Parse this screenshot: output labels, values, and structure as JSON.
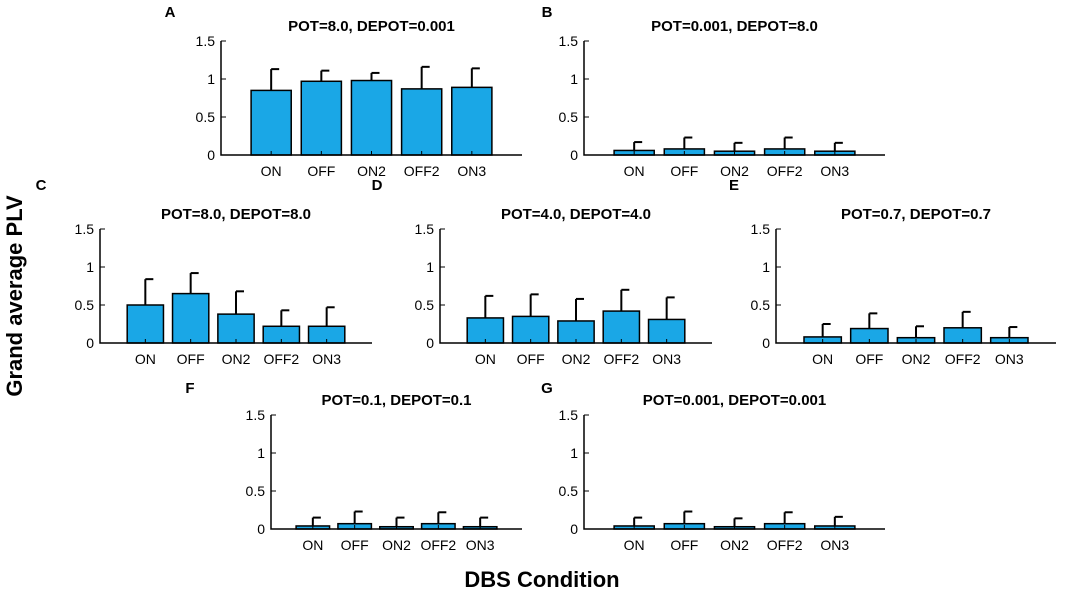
{
  "figure": {
    "ylabel": "Grand average PLV",
    "xlabel": "DBS Condition",
    "colors": {
      "bar": "#1aa7e6",
      "edge": "#000000"
    }
  },
  "chart_data": [
    {
      "type": "bar",
      "panel": "A",
      "title": "POT=8.0, DEPOT=0.001",
      "categories": [
        "ON",
        "OFF",
        "ON2",
        "OFF2",
        "ON3"
      ],
      "values": [
        0.85,
        0.97,
        0.98,
        0.87,
        0.89
      ],
      "errors": [
        0.28,
        0.14,
        0.1,
        0.29,
        0.25
      ],
      "ylim": [
        0,
        1.5
      ],
      "yticks": [
        "0",
        "0.5",
        "1",
        "1.5"
      ]
    },
    {
      "type": "bar",
      "panel": "B",
      "title": "POT=0.001, DEPOT=8.0",
      "categories": [
        "ON",
        "OFF",
        "ON2",
        "OFF2",
        "ON3"
      ],
      "values": [
        0.06,
        0.08,
        0.05,
        0.08,
        0.05
      ],
      "errors": [
        0.11,
        0.15,
        0.11,
        0.15,
        0.11
      ],
      "ylim": [
        0,
        1.5
      ],
      "yticks": [
        "0",
        "0.5",
        "1",
        "1.5"
      ]
    },
    {
      "type": "bar",
      "panel": "C",
      "title": "POT=8.0, DEPOT=8.0",
      "categories": [
        "ON",
        "OFF",
        "ON2",
        "OFF2",
        "ON3"
      ],
      "values": [
        0.5,
        0.65,
        0.38,
        0.22,
        0.22
      ],
      "errors": [
        0.34,
        0.27,
        0.3,
        0.21,
        0.25
      ],
      "ylim": [
        0,
        1.5
      ],
      "yticks": [
        "0",
        "0.5",
        "1",
        "1.5"
      ]
    },
    {
      "type": "bar",
      "panel": "D",
      "title": "POT=4.0, DEPOT=4.0",
      "categories": [
        "ON",
        "OFF",
        "ON2",
        "OFF2",
        "ON3"
      ],
      "values": [
        0.33,
        0.35,
        0.29,
        0.42,
        0.31
      ],
      "errors": [
        0.29,
        0.29,
        0.29,
        0.28,
        0.29
      ],
      "ylim": [
        0,
        1.5
      ],
      "yticks": [
        "0",
        "0.5",
        "1",
        "1.5"
      ]
    },
    {
      "type": "bar",
      "panel": "E",
      "title": "POT=0.7, DEPOT=0.7",
      "categories": [
        "ON",
        "OFF",
        "ON2",
        "OFF2",
        "ON3"
      ],
      "values": [
        0.08,
        0.19,
        0.07,
        0.2,
        0.07
      ],
      "errors": [
        0.17,
        0.2,
        0.15,
        0.21,
        0.14
      ],
      "ylim": [
        0,
        1.5
      ],
      "yticks": [
        "0",
        "0.5",
        "1",
        "1.5"
      ]
    },
    {
      "type": "bar",
      "panel": "F",
      "title": "POT=0.1, DEPOT=0.1",
      "categories": [
        "ON",
        "OFF",
        "ON2",
        "OFF2",
        "ON3"
      ],
      "values": [
        0.04,
        0.07,
        0.03,
        0.07,
        0.03
      ],
      "errors": [
        0.11,
        0.16,
        0.12,
        0.15,
        0.12
      ],
      "ylim": [
        0,
        1.5
      ],
      "yticks": [
        "0",
        "0.5",
        "1",
        "1.5"
      ]
    },
    {
      "type": "bar",
      "panel": "G",
      "title": "POT=0.001, DEPOT=0.001",
      "categories": [
        "ON",
        "OFF",
        "ON2",
        "OFF2",
        "ON3"
      ],
      "values": [
        0.04,
        0.07,
        0.03,
        0.07,
        0.04
      ],
      "errors": [
        0.11,
        0.16,
        0.11,
        0.15,
        0.12
      ],
      "ylim": [
        0,
        1.5
      ],
      "yticks": [
        "0",
        "0.5",
        "1",
        "1.5"
      ]
    }
  ]
}
